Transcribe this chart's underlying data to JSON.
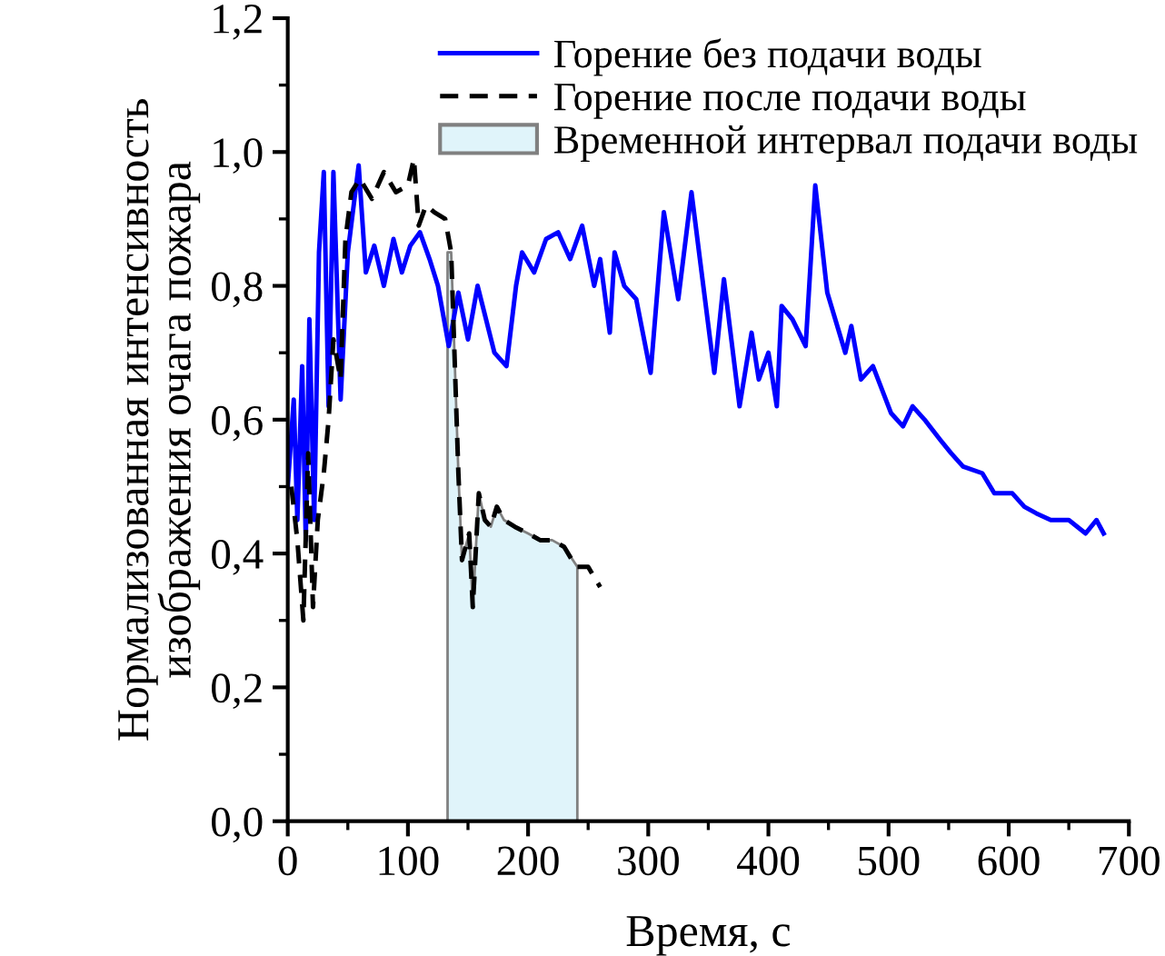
{
  "chart_data": {
    "type": "line",
    "xlabel": "Время, с",
    "ylabel": "Нормализованная интенсивность\nизображения очага пожара",
    "xlim": [
      0,
      700
    ],
    "ylim": [
      0,
      1.2
    ],
    "xticks": [
      0,
      {
        "value": 50,
        "label": null
      },
      100,
      {
        "value": 150,
        "label": null
      },
      200,
      {
        "value": 250,
        "label": null
      },
      300,
      {
        "value": 350,
        "label": null
      },
      400,
      {
        "value": 450,
        "label": null
      },
      500,
      {
        "value": 550,
        "label": null
      },
      600,
      {
        "value": 650,
        "label": null
      },
      700
    ],
    "yticks": [
      {
        "value": 0,
        "label": "0,0"
      },
      {
        "value": 0.1,
        "label": null
      },
      {
        "value": 0.2,
        "label": "0,2"
      },
      {
        "value": 0.3,
        "label": null
      },
      {
        "value": 0.4,
        "label": "0,4"
      },
      {
        "value": 0.5,
        "label": null
      },
      {
        "value": 0.6,
        "label": "0,6"
      },
      {
        "value": 0.7,
        "label": null
      },
      {
        "value": 0.8,
        "label": "0,8"
      },
      {
        "value": 0.9,
        "label": null
      },
      {
        "value": 1.0,
        "label": "1,0"
      },
      {
        "value": 1.1,
        "label": null
      },
      {
        "value": 1.2,
        "label": "1,2"
      }
    ],
    "legend": "top right",
    "grid": false,
    "series": [
      {
        "name": "Горение без подачи воды",
        "color": "#0000ff",
        "line_style": "solid",
        "x": [
          0,
          5,
          8,
          12,
          15,
          18,
          22,
          26,
          30,
          34,
          38,
          44,
          50,
          59,
          65,
          72,
          80,
          88,
          95,
          102,
          110,
          118,
          125,
          134,
          142,
          150,
          158,
          165,
          172,
          182,
          190,
          195,
          205,
          215,
          225,
          235,
          245,
          255,
          260,
          268,
          272,
          280,
          290,
          302,
          313,
          325,
          336,
          343,
          355,
          363,
          376,
          386,
          392,
          400,
          407,
          411,
          420,
          431,
          439,
          449,
          464,
          469,
          477,
          487,
          502,
          512,
          520,
          530,
          543,
          552,
          562,
          578,
          588,
          603,
          613,
          623,
          635,
          650,
          664,
          673,
          679
        ],
        "values": [
          0.5,
          0.63,
          0.45,
          0.68,
          0.42,
          0.75,
          0.45,
          0.85,
          0.97,
          0.62,
          0.97,
          0.63,
          0.85,
          0.98,
          0.82,
          0.86,
          0.8,
          0.87,
          0.82,
          0.86,
          0.88,
          0.84,
          0.8,
          0.71,
          0.79,
          0.72,
          0.8,
          0.75,
          0.7,
          0.68,
          0.8,
          0.85,
          0.82,
          0.87,
          0.88,
          0.84,
          0.89,
          0.8,
          0.84,
          0.73,
          0.85,
          0.8,
          0.78,
          0.67,
          0.91,
          0.78,
          0.94,
          0.84,
          0.67,
          0.81,
          0.62,
          0.73,
          0.66,
          0.7,
          0.62,
          0.77,
          0.75,
          0.71,
          0.95,
          0.79,
          0.7,
          0.74,
          0.66,
          0.68,
          0.61,
          0.59,
          0.62,
          0.6,
          0.57,
          0.55,
          0.53,
          0.52,
          0.49,
          0.49,
          0.47,
          0.46,
          0.45,
          0.45,
          0.43,
          0.45,
          0.43
        ]
      },
      {
        "name": "Горение после подачи воды",
        "color": "#000000",
        "line_style": "dashed",
        "x": [
          3,
          8,
          13,
          17,
          21,
          25,
          30,
          34,
          38,
          44,
          48,
          53,
          60,
          70,
          80,
          90,
          100,
          105,
          109,
          115,
          122,
          131,
          136,
          142,
          145,
          151,
          154,
          159,
          164,
          169,
          174,
          180,
          189,
          200,
          210,
          220,
          230,
          240,
          250,
          260
        ],
        "values": [
          0.5,
          0.42,
          0.3,
          0.55,
          0.32,
          0.45,
          0.52,
          0.6,
          0.72,
          0.66,
          0.87,
          0.94,
          0.96,
          0.93,
          0.97,
          0.94,
          0.95,
          0.99,
          0.89,
          0.92,
          0.91,
          0.9,
          0.85,
          0.52,
          0.39,
          0.43,
          0.32,
          0.49,
          0.45,
          0.44,
          0.47,
          0.45,
          0.44,
          0.43,
          0.42,
          0.42,
          0.41,
          0.38,
          0.38,
          0.35
        ]
      },
      {
        "name": "Временной интервал подачи воды",
        "type": "area",
        "color": "#e0f4fa",
        "x": [
          133,
          136,
          142,
          145,
          151,
          154,
          159,
          164,
          169,
          174,
          180,
          189,
          200,
          210,
          220,
          230,
          241
        ],
        "values": [
          0.85,
          0.85,
          0.52,
          0.39,
          0.43,
          0.32,
          0.49,
          0.45,
          0.44,
          0.47,
          0.45,
          0.44,
          0.43,
          0.42,
          0.42,
          0.41,
          0.38
        ]
      }
    ]
  }
}
